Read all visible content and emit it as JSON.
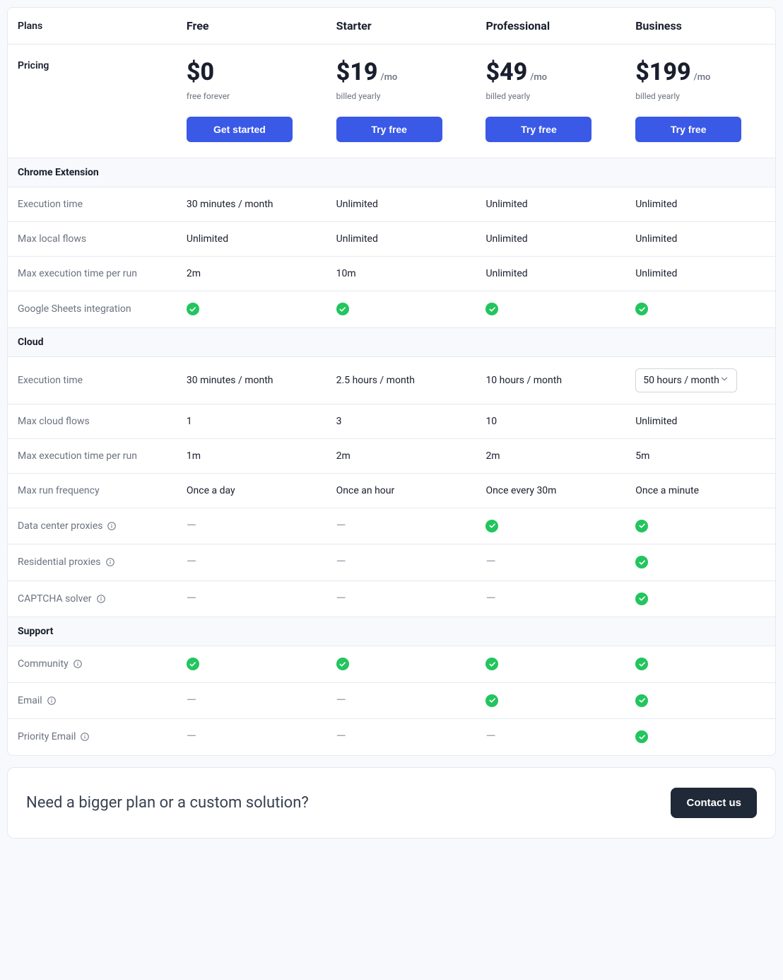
{
  "colors": {
    "primary_button_bg": "#3a59e6",
    "primary_button_text": "#ffffff",
    "dark_button_bg": "#1f2937",
    "check_bg": "#22c55e",
    "border": "#e5e9f0",
    "section_bg": "#f7f9fc",
    "text_primary": "#1a1f2e",
    "text_muted": "#6b7280",
    "dash": "#9ca3af"
  },
  "header": {
    "plans_label": "Plans",
    "pricing_label": "Pricing",
    "plans": [
      {
        "name": "Free",
        "price": "$0",
        "unit": "",
        "note": "free forever",
        "cta": "Get started"
      },
      {
        "name": "Starter",
        "price": "$19",
        "unit": "/mo",
        "note": "billed yearly",
        "cta": "Try free"
      },
      {
        "name": "Professional",
        "price": "$49",
        "unit": "/mo",
        "note": "billed yearly",
        "cta": "Try free"
      },
      {
        "name": "Business",
        "price": "$199",
        "unit": "/mo",
        "note": "billed yearly",
        "cta": "Try free"
      }
    ]
  },
  "sections": [
    {
      "title": "Chrome Extension",
      "rows": [
        {
          "label": "Execution time",
          "info": false,
          "values": [
            "30 minutes / month",
            "Unlimited",
            "Unlimited",
            "Unlimited"
          ]
        },
        {
          "label": "Max local flows",
          "info": false,
          "values": [
            "Unlimited",
            "Unlimited",
            "Unlimited",
            "Unlimited"
          ]
        },
        {
          "label": "Max execution time per run",
          "info": false,
          "values": [
            "2m",
            "10m",
            "Unlimited",
            "Unlimited"
          ]
        },
        {
          "label": "Google Sheets integration",
          "info": false,
          "values": [
            "check",
            "check",
            "check",
            "check"
          ]
        }
      ]
    },
    {
      "title": "Cloud",
      "rows": [
        {
          "label": "Execution time",
          "info": false,
          "values": [
            "30 minutes / month",
            "2.5 hours / month",
            "10 hours / month",
            {
              "type": "select",
              "text": "50 hours / month"
            }
          ]
        },
        {
          "label": "Max cloud flows",
          "info": false,
          "values": [
            "1",
            "3",
            "10",
            "Unlimited"
          ]
        },
        {
          "label": "Max execution time per run",
          "info": false,
          "values": [
            "1m",
            "2m",
            "2m",
            "5m"
          ]
        },
        {
          "label": "Max run frequency",
          "info": false,
          "values": [
            "Once a day",
            "Once an hour",
            "Once every 30m",
            "Once a minute"
          ]
        },
        {
          "label": "Data center proxies",
          "info": true,
          "values": [
            "dash",
            "dash",
            "check",
            "check"
          ]
        },
        {
          "label": "Residential proxies",
          "info": true,
          "values": [
            "dash",
            "dash",
            "dash",
            "check"
          ]
        },
        {
          "label": "CAPTCHA solver",
          "info": true,
          "values": [
            "dash",
            "dash",
            "dash",
            "check"
          ]
        }
      ]
    },
    {
      "title": "Support",
      "rows": [
        {
          "label": "Community",
          "info": true,
          "values": [
            "check",
            "check",
            "check",
            "check"
          ]
        },
        {
          "label": "Email",
          "info": true,
          "values": [
            "dash",
            "dash",
            "check",
            "check"
          ]
        },
        {
          "label": "Priority Email",
          "info": true,
          "values": [
            "dash",
            "dash",
            "dash",
            "check"
          ]
        }
      ]
    }
  ],
  "banner": {
    "title": "Need a bigger plan or a custom solution?",
    "cta": "Contact us"
  }
}
